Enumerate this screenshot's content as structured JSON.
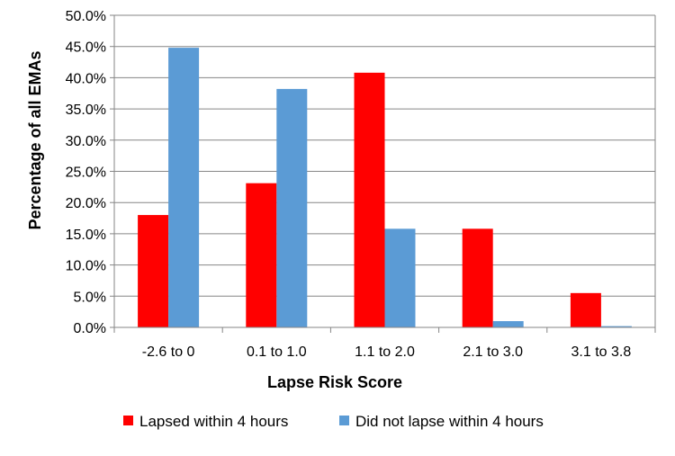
{
  "chart_data": {
    "type": "bar",
    "title": "",
    "xlabel": "Lapse Risk Score",
    "ylabel": "Percentage of all EMAs",
    "categories": [
      "-2.6 to 0",
      "0.1 to 1.0",
      "1.1 to 2.0",
      "2.1 to 3.0",
      "3.1 to 3.8"
    ],
    "series": [
      {
        "name": "Lapsed within 4 hours",
        "color": "#ff0000",
        "values": [
          18.0,
          23.1,
          40.8,
          15.8,
          5.5
        ]
      },
      {
        "name": "Did not lapse within 4 hours",
        "color": "#5b9bd5",
        "values": [
          44.8,
          38.2,
          15.8,
          1.0,
          0.2
        ]
      }
    ],
    "ylim": [
      0,
      50
    ],
    "ytick_step": 5,
    "ytick_labels": [
      "0.0%",
      "5.0%",
      "10.0%",
      "15.0%",
      "20.0%",
      "25.0%",
      "30.0%",
      "35.0%",
      "40.0%",
      "45.0%",
      "50.0%"
    ],
    "grid": true,
    "legend_position": "bottom"
  }
}
